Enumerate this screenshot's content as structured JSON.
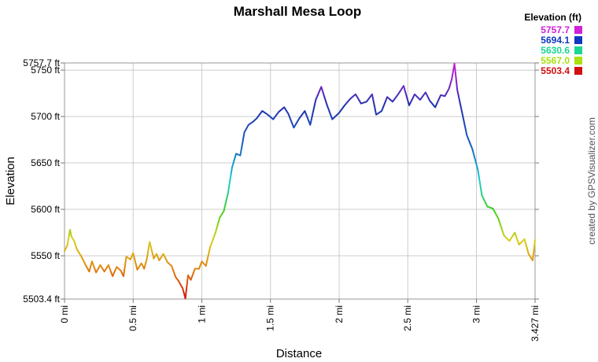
{
  "chart_data": {
    "type": "line",
    "title": "Marshall Mesa Loop",
    "xlabel": "Distance",
    "ylabel": "Elevation",
    "xlim": [
      0,
      3.427
    ],
    "ylim": [
      5503.4,
      5757.7
    ],
    "x_ticks": [
      {
        "value": 0,
        "label": "0 mi"
      },
      {
        "value": 0.5,
        "label": "0.5 mi"
      },
      {
        "value": 1,
        "label": "1 mi"
      },
      {
        "value": 1.5,
        "label": "1.5 mi"
      },
      {
        "value": 2,
        "label": "2 mi"
      },
      {
        "value": 2.5,
        "label": "2.5 mi"
      },
      {
        "value": 3,
        "label": "3 mi"
      },
      {
        "value": 3.427,
        "label": "3.427 mi"
      }
    ],
    "y_ticks": [
      {
        "value": 5503.4,
        "label": "5503.4 ft"
      },
      {
        "value": 5550,
        "label": "5550 ft"
      },
      {
        "value": 5600,
        "label": "5600 ft"
      },
      {
        "value": 5650,
        "label": "5650 ft"
      },
      {
        "value": 5700,
        "label": "5700 ft"
      },
      {
        "value": 5750,
        "label": "5750 ft"
      },
      {
        "value": 5757.7,
        "label": "5757.7 ft"
      }
    ],
    "grid": true,
    "legend": {
      "title": "Elevation (ft)",
      "placement": "top-right",
      "entries": [
        {
          "label": "5757.7",
          "color": "#d020d8"
        },
        {
          "label": "5694.1",
          "color": "#1038c0"
        },
        {
          "label": "5630.6",
          "color": "#18d890"
        },
        {
          "label": "5567.0",
          "color": "#a8e010"
        },
        {
          "label": "5503.4",
          "color": "#d01010"
        }
      ]
    },
    "series": [
      {
        "x": [
          0,
          0.02,
          0.04,
          0.05,
          0.07,
          0.09,
          0.12,
          0.15,
          0.18,
          0.2,
          0.23,
          0.26,
          0.29,
          0.32,
          0.35,
          0.38,
          0.41,
          0.43,
          0.45,
          0.48,
          0.5,
          0.53,
          0.56,
          0.58,
          0.6,
          0.62,
          0.65,
          0.67,
          0.69,
          0.72,
          0.75,
          0.78,
          0.81,
          0.83,
          0.86,
          0.88,
          0.9,
          0.92,
          0.95,
          0.98,
          1.0,
          1.03,
          1.06,
          1.1,
          1.13,
          1.16,
          1.19,
          1.22,
          1.25,
          1.28,
          1.31,
          1.34,
          1.37,
          1.4,
          1.44,
          1.48,
          1.52,
          1.56,
          1.6,
          1.63,
          1.67,
          1.71,
          1.75,
          1.79,
          1.83,
          1.87,
          1.91,
          1.95,
          2.0,
          2.04,
          2.08,
          2.12,
          2.16,
          2.2,
          2.24,
          2.27,
          2.31,
          2.35,
          2.39,
          2.43,
          2.47,
          2.51,
          2.55,
          2.59,
          2.63,
          2.66,
          2.7,
          2.74,
          2.77,
          2.8,
          2.82,
          2.84,
          2.86,
          2.89,
          2.93,
          2.97,
          3.01,
          3.04,
          3.08,
          3.12,
          3.16,
          3.2,
          3.24,
          3.28,
          3.31,
          3.35,
          3.38,
          3.41,
          3.427
        ],
        "values": [
          5555,
          5561,
          5578,
          5571,
          5566,
          5557,
          5550,
          5541,
          5533,
          5544,
          5532,
          5540,
          5533,
          5540,
          5528,
          5538,
          5534,
          5528,
          5549,
          5546,
          5553,
          5535,
          5542,
          5536,
          5547,
          5565,
          5547,
          5552,
          5545,
          5552,
          5543,
          5539,
          5527,
          5523,
          5515,
          5504,
          5529,
          5524,
          5536,
          5536,
          5544,
          5539,
          5559,
          5575,
          5591,
          5598,
          5617,
          5645,
          5660,
          5658,
          5683,
          5691,
          5694,
          5698,
          5706,
          5702,
          5697,
          5705,
          5710,
          5703,
          5688,
          5698,
          5706,
          5691,
          5718,
          5732,
          5713,
          5697,
          5704,
          5712,
          5719,
          5724,
          5714,
          5716,
          5724,
          5702,
          5706,
          5721,
          5716,
          5724,
          5733,
          5712,
          5724,
          5718,
          5726,
          5717,
          5710,
          5723,
          5722,
          5730,
          5740,
          5757,
          5729,
          5708,
          5680,
          5665,
          5643,
          5615,
          5603,
          5601,
          5590,
          5572,
          5566,
          5575,
          5562,
          5568,
          5552,
          5545,
          5567
        ]
      }
    ]
  },
  "side_credit": "created by GPSVisualizer.com"
}
